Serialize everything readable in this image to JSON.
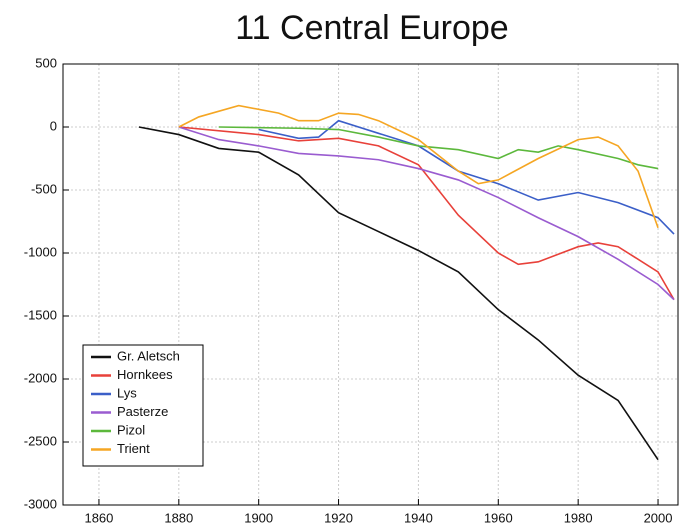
{
  "chart_data": {
    "type": "line",
    "title": "11 Central Europe",
    "xlim": [
      1851,
      2005
    ],
    "xticks": [
      1860,
      1880,
      1900,
      1920,
      1940,
      1960,
      1980,
      2000
    ],
    "ylim": [
      -3000,
      500
    ],
    "yticks": [
      -3000,
      -2500,
      -2000,
      -1500,
      -1000,
      -500,
      0,
      500
    ],
    "grid": true,
    "legend": "lower left",
    "series": [
      {
        "name": "Gr. Aletsch",
        "color": "#111111",
        "x": [
          1870,
          1880,
          1890,
          1900,
          1910,
          1920,
          1930,
          1940,
          1950,
          1960,
          1970,
          1980,
          1990,
          2000
        ],
        "values": [
          0,
          -60,
          -170,
          -200,
          -380,
          -680,
          -830,
          -980,
          -1150,
          -1450,
          -1690,
          -1970,
          -2170,
          -2640
        ]
      },
      {
        "name": "Hornkees",
        "color": "#e8413a",
        "x": [
          1880,
          1900,
          1910,
          1920,
          1930,
          1940,
          1950,
          1960,
          1965,
          1970,
          1980,
          1985,
          1990,
          2000,
          2004
        ],
        "values": [
          0,
          -60,
          -110,
          -90,
          -150,
          -300,
          -700,
          -1000,
          -1090,
          -1070,
          -950,
          -920,
          -950,
          -1150,
          -1370
        ]
      },
      {
        "name": "Lys",
        "color": "#3b5fc8",
        "x": [
          1900,
          1910,
          1915,
          1920,
          1930,
          1940,
          1950,
          1960,
          1970,
          1980,
          1990,
          2000,
          2004
        ],
        "values": [
          -20,
          -90,
          -80,
          50,
          -50,
          -150,
          -350,
          -450,
          -580,
          -520,
          -600,
          -720,
          -850
        ]
      },
      {
        "name": "Pasterze",
        "color": "#9a5cd0",
        "x": [
          1880,
          1890,
          1900,
          1910,
          1920,
          1930,
          1940,
          1950,
          1960,
          1970,
          1980,
          1990,
          2000,
          2004
        ],
        "values": [
          0,
          -100,
          -150,
          -210,
          -230,
          -260,
          -330,
          -420,
          -560,
          -720,
          -870,
          -1050,
          -1250,
          -1370
        ]
      },
      {
        "name": "Pizol",
        "color": "#5cb83c",
        "x": [
          1890,
          1910,
          1920,
          1930,
          1940,
          1950,
          1960,
          1965,
          1970,
          1975,
          1980,
          1990,
          1995,
          2000
        ],
        "values": [
          0,
          -10,
          -20,
          -80,
          -150,
          -180,
          -250,
          -180,
          -200,
          -150,
          -180,
          -250,
          -300,
          -330
        ]
      },
      {
        "name": "Trient",
        "color": "#f5a623",
        "x": [
          1880,
          1885,
          1895,
          1905,
          1910,
          1915,
          1920,
          1925,
          1930,
          1940,
          1950,
          1955,
          1960,
          1970,
          1980,
          1985,
          1990,
          1995,
          2000
        ],
        "values": [
          0,
          80,
          170,
          110,
          50,
          50,
          110,
          100,
          50,
          -100,
          -350,
          -450,
          -420,
          -250,
          -100,
          -80,
          -150,
          -350,
          -800
        ]
      }
    ]
  }
}
